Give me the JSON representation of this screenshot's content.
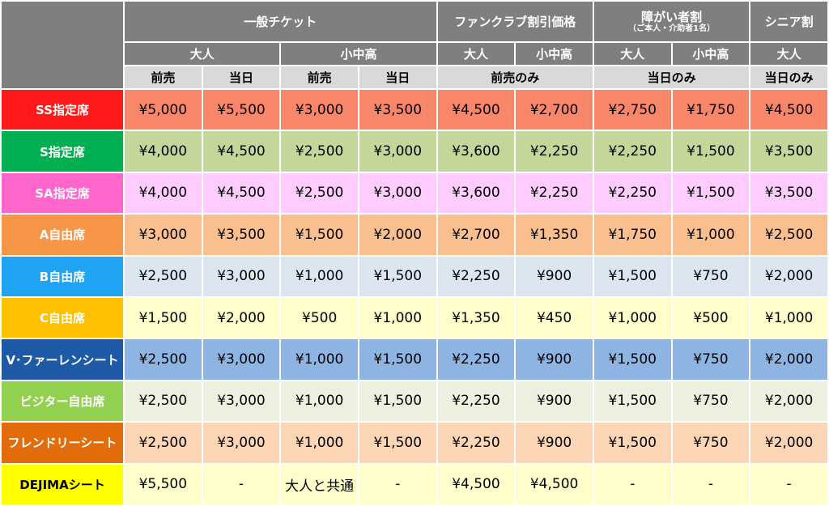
{
  "headers": {
    "groups": [
      {
        "label": "一般チケット",
        "sub": ""
      },
      {
        "label": "ファンクラブ割引価格",
        "sub": ""
      },
      {
        "label": "障がい者割",
        "sub": "（ご本人・介助者1名）"
      },
      {
        "label": "シニア割",
        "sub": ""
      }
    ],
    "age": [
      "大人",
      "小中高",
      "大人",
      "小中高",
      "大人",
      "小中高",
      "大人"
    ],
    "timing": [
      "前売",
      "当日",
      "前売",
      "当日",
      "前売のみ",
      "当日のみ",
      "当日のみ"
    ]
  },
  "colors": {
    "header_dark": "#7f7f7f",
    "header_light": "#d9d9d9"
  },
  "rows": [
    {
      "seat": "SS指定席",
      "seat_color": "#ff1a1a",
      "cell_color": "#f8866a",
      "seat_text_dark": false,
      "cells": [
        "¥5,000",
        "¥5,500",
        "¥3,000",
        "¥3,500",
        "¥4,500",
        "¥2,700",
        "¥2,750",
        "¥1,750",
        "¥4,500"
      ]
    },
    {
      "seat": "S指定席",
      "seat_color": "#00b050",
      "cell_color": "#c4d79b",
      "seat_text_dark": false,
      "cells": [
        "¥4,000",
        "¥4,500",
        "¥2,500",
        "¥3,000",
        "¥3,600",
        "¥2,250",
        "¥2,250",
        "¥1,500",
        "¥3,500"
      ]
    },
    {
      "seat": "SA指定席",
      "seat_color": "#ff66cc",
      "cell_color": "#ffccff",
      "seat_text_dark": false,
      "cells": [
        "¥4,000",
        "¥4,500",
        "¥2,500",
        "¥3,000",
        "¥3,600",
        "¥2,250",
        "¥2,250",
        "¥1,500",
        "¥3,500"
      ]
    },
    {
      "seat": "A自由席",
      "seat_color": "#f79646",
      "cell_color": "#fabf8f",
      "seat_text_dark": false,
      "cells": [
        "¥3,000",
        "¥3,500",
        "¥1,500",
        "¥2,000",
        "¥2,700",
        "¥1,350",
        "¥1,750",
        "¥1,000",
        "¥2,500"
      ]
    },
    {
      "seat": "B自由席",
      "seat_color": "#1fa4f4",
      "cell_color": "#dce6f1",
      "seat_text_dark": false,
      "cells": [
        "¥2,500",
        "¥3,000",
        "¥1,000",
        "¥1,500",
        "¥2,250",
        "¥900",
        "¥1,500",
        "¥750",
        "¥2,000"
      ]
    },
    {
      "seat": "C自由席",
      "seat_color": "#ffc000",
      "cell_color": "#ffffcc",
      "seat_text_dark": false,
      "cells": [
        "¥1,500",
        "¥2,000",
        "¥500",
        "¥1,000",
        "¥1,350",
        "¥450",
        "¥1,000",
        "¥500",
        "¥1,000"
      ]
    },
    {
      "seat": "V･ファーレンシート",
      "seat_color": "#1f5aa6",
      "cell_color": "#8db4e2",
      "seat_text_dark": false,
      "cells": [
        "¥2,500",
        "¥3,000",
        "¥1,000",
        "¥1,500",
        "¥2,250",
        "¥900",
        "¥1,500",
        "¥750",
        "¥2,000"
      ]
    },
    {
      "seat": "ビジター自由席",
      "seat_color": "#92d050",
      "cell_color": "#ebf1de",
      "seat_text_dark": false,
      "cells": [
        "¥2,500",
        "¥3,000",
        "¥1,000",
        "¥1,500",
        "¥2,250",
        "¥900",
        "¥1,500",
        "¥750",
        "¥2,000"
      ]
    },
    {
      "seat": "フレンドリーシート",
      "seat_color": "#e26b0a",
      "cell_color": "#fcd5b4",
      "seat_text_dark": false,
      "cells": [
        "¥2,500",
        "¥3,000",
        "¥1,000",
        "¥1,500",
        "¥2,250",
        "¥900",
        "¥1,500",
        "¥750",
        "¥2,000"
      ]
    },
    {
      "seat": "DEJIMAシート",
      "seat_color": "#ffff00",
      "cell_color": "#ffffcc",
      "seat_text_dark": true,
      "cells": [
        "¥5,500",
        "-",
        "大人と共通",
        "-",
        "¥4,500",
        "¥4,500",
        "-",
        "-",
        "-"
      ]
    }
  ]
}
